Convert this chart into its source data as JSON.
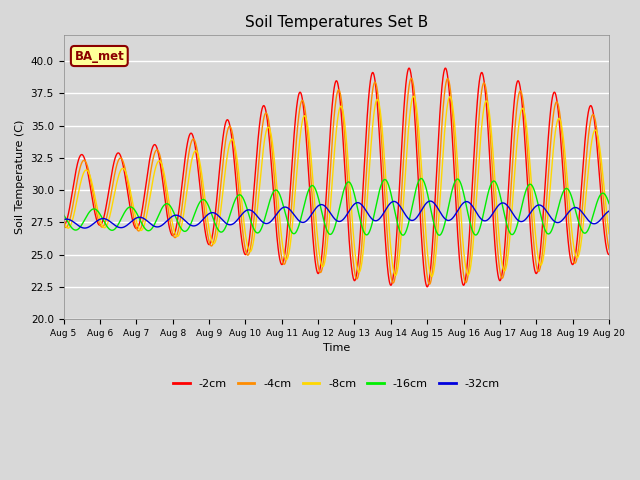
{
  "title": "Soil Temperatures Set B",
  "xlabel": "Time",
  "ylabel": "Soil Temperature (C)",
  "ylim": [
    20,
    42
  ],
  "xlim": [
    0,
    360
  ],
  "bg_color": "#d8d8d8",
  "annotation_text": "BA_met",
  "annotation_color": "#8B0000",
  "annotation_bg": "#FFFF99",
  "series": [
    {
      "label": "-2cm",
      "color": "#FF0000",
      "mean": 30.5,
      "amp_base": 5.5,
      "amp_mod": 3.0,
      "amp_mod_phase": 200,
      "phase": 6.0,
      "period": 24
    },
    {
      "label": "-4cm",
      "color": "#FF8C00",
      "mean": 30.2,
      "amp_base": 5.2,
      "amp_mod": 2.8,
      "amp_mod_phase": 200,
      "phase": 7.5,
      "period": 24
    },
    {
      "label": "-8cm",
      "color": "#FFD700",
      "mean": 29.8,
      "amp_base": 4.5,
      "amp_mod": 2.5,
      "amp_mod_phase": 200,
      "phase": 9.0,
      "period": 24
    },
    {
      "label": "-16cm",
      "color": "#00EE00",
      "mean": 28.2,
      "amp_base": 1.5,
      "amp_mod": 0.7,
      "amp_mod_phase": 200,
      "phase": 14.0,
      "period": 24
    },
    {
      "label": "-32cm",
      "color": "#0000DD",
      "mean": 27.9,
      "amp_base": 0.55,
      "amp_mod": 0.2,
      "amp_mod_phase": 200,
      "phase": 20.0,
      "period": 24
    }
  ],
  "tick_labels": [
    "Aug 5",
    "Aug 6",
    "Aug 7",
    "Aug 8",
    "Aug 9",
    "Aug 10",
    "Aug 11",
    "Aug 12",
    "Aug 13",
    "Aug 14",
    "Aug 15",
    "Aug 16",
    "Aug 17",
    "Aug 18",
    "Aug 19",
    "Aug 20"
  ],
  "tick_positions": [
    0,
    24,
    48,
    72,
    96,
    120,
    144,
    168,
    192,
    216,
    240,
    264,
    288,
    312,
    336,
    360
  ]
}
